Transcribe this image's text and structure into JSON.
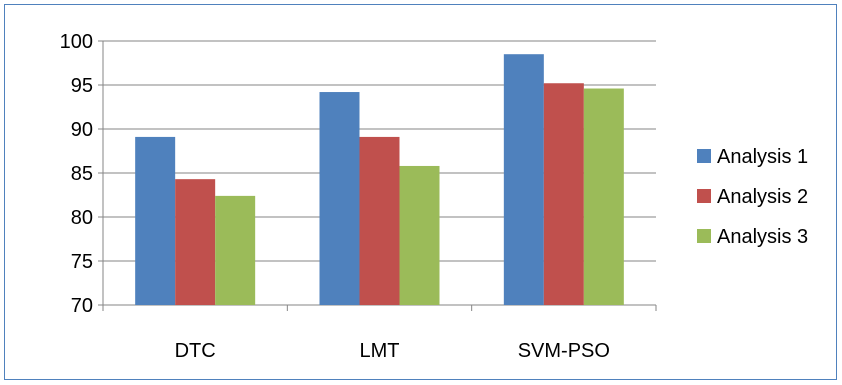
{
  "chart_data": {
    "type": "bar",
    "categories": [
      "DTC",
      "LMT",
      "SVM-PSO"
    ],
    "series": [
      {
        "name": "Analysis 1",
        "values": [
          89.1,
          94.2,
          98.5
        ],
        "color": "#4F81BD"
      },
      {
        "name": "Analysis 2",
        "values": [
          84.3,
          89.1,
          95.2
        ],
        "color": "#C0504D"
      },
      {
        "name": "Analysis 3",
        "values": [
          82.4,
          85.8,
          94.6
        ],
        "color": "#9BBB59"
      }
    ],
    "yticks": [
      "70",
      "75",
      "80",
      "85",
      "90",
      "95",
      "100"
    ],
    "ylim": [
      70,
      100
    ],
    "grid": true,
    "legend": "right"
  }
}
